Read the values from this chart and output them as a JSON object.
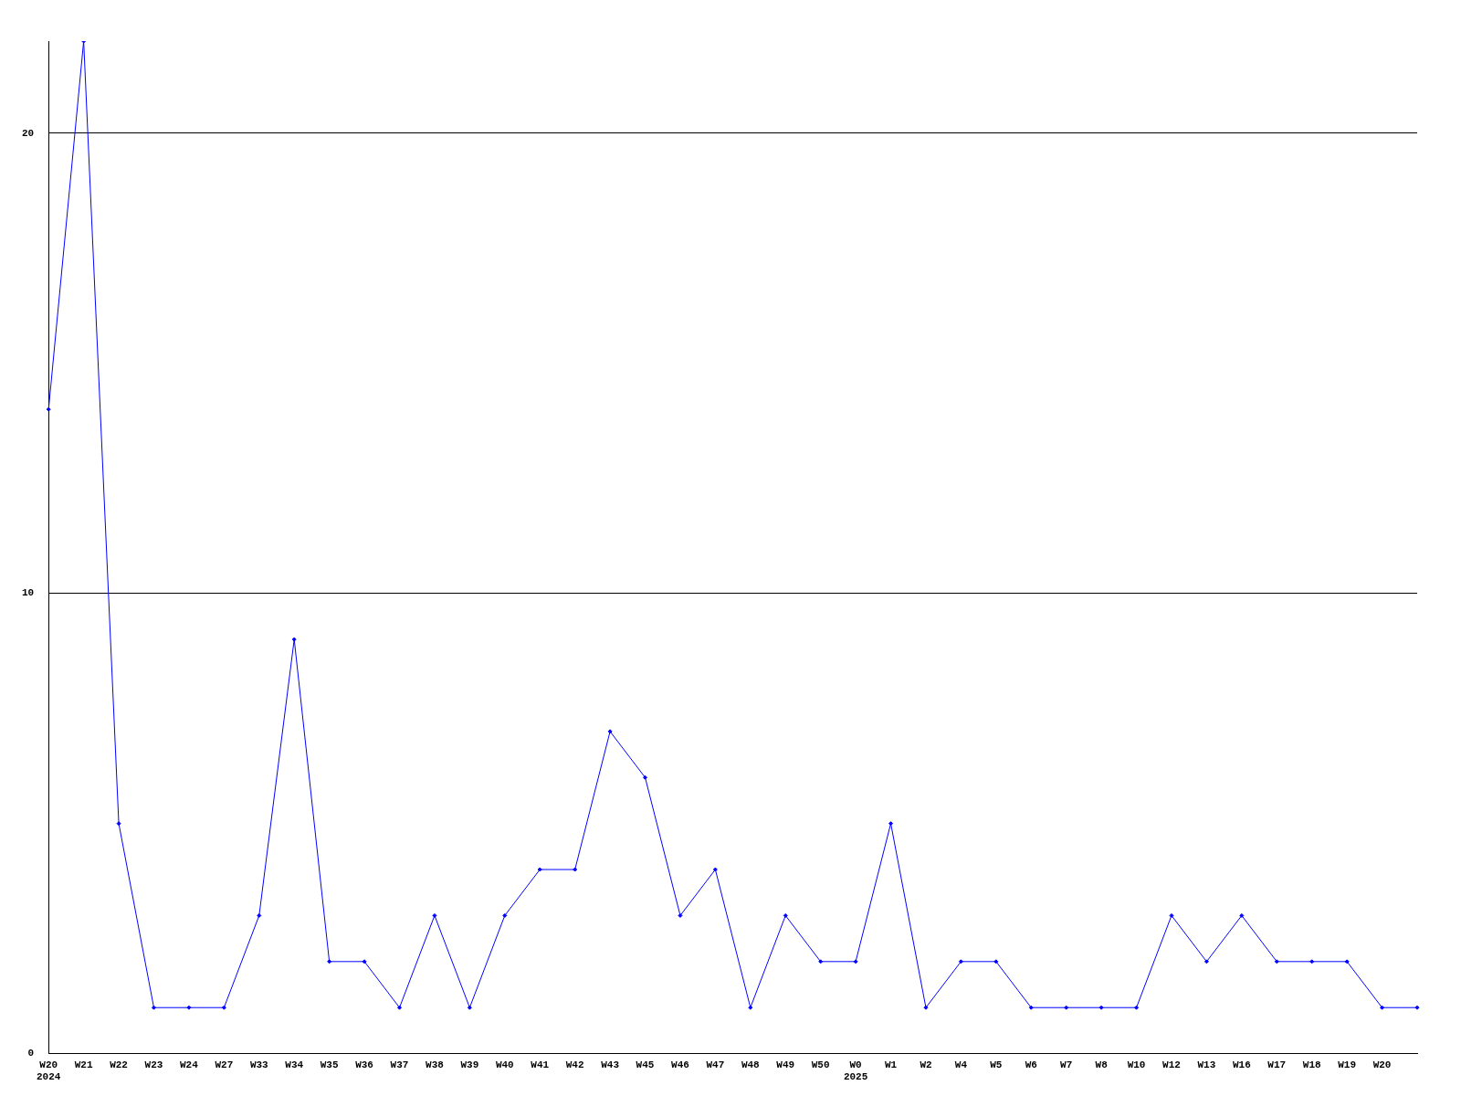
{
  "chart_data": {
    "type": "line",
    "categories": [
      "W20\n2024",
      "W21",
      "W22",
      "W23",
      "W24",
      "W27",
      "W33",
      "W34",
      "W35",
      "W36",
      "W37",
      "W38",
      "W39",
      "W40",
      "W41",
      "W42",
      "W43",
      "W45",
      "W46",
      "W47",
      "W48",
      "W49",
      "W50",
      "W0\n2025",
      "W1",
      "W2",
      "W4",
      "W5",
      "W6",
      "W7",
      "W8",
      "W10",
      "W12",
      "W13",
      "W16",
      "W17",
      "W18",
      "W19",
      "W20",
      null
    ],
    "series": [
      {
        "color": "#0000ff",
        "values": [
          14,
          22,
          5,
          1,
          1,
          1,
          3,
          9,
          2,
          2,
          1,
          3,
          1,
          3,
          4,
          4,
          7,
          6,
          3,
          4,
          1,
          3,
          2,
          2,
          5,
          1,
          2,
          2,
          1,
          1,
          1,
          1,
          3,
          2,
          3,
          2,
          2,
          2,
          1,
          1
        ]
      }
    ],
    "ylim": [
      0,
      22
    ],
    "yticks": [
      0,
      10,
      20
    ],
    "grid": "y",
    "marker": "diamond",
    "line_style": "solid",
    "legend": false
  }
}
